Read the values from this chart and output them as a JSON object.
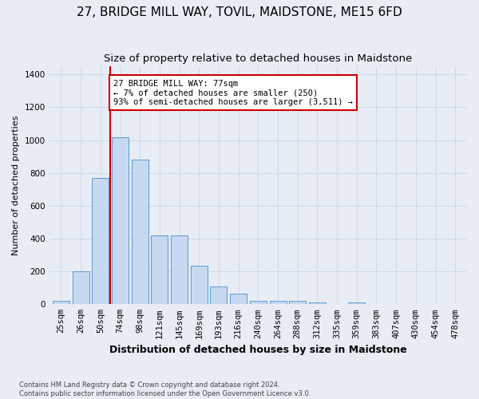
{
  "title": "27, BRIDGE MILL WAY, TOVIL, MAIDSTONE, ME15 6FD",
  "subtitle": "Size of property relative to detached houses in Maidstone",
  "xlabel": "Distribution of detached houses by size in Maidstone",
  "ylabel": "Number of detached properties",
  "categories": [
    "25sqm",
    "26sqm",
    "50sqm",
    "74sqm",
    "98sqm",
    "121sqm",
    "145sqm",
    "169sqm",
    "193sqm",
    "216sqm",
    "240sqm",
    "264sqm",
    "288sqm",
    "312sqm",
    "335sqm",
    "359sqm",
    "383sqm",
    "407sqm",
    "430sqm",
    "454sqm",
    "478sqm"
  ],
  "values": [
    20,
    200,
    770,
    1020,
    880,
    420,
    420,
    235,
    110,
    65,
    20,
    20,
    20,
    10,
    0,
    10,
    0,
    0,
    0,
    0,
    0
  ],
  "bar_color": "#c6d9f0",
  "bar_edge_color": "#5b9bd5",
  "grid_color": "#d0d8e8",
  "bg_color": "#e8edf5",
  "annotation_text": "27 BRIDGE MILL WAY: 77sqm\n← 7% of detached houses are smaller (250)\n93% of semi-detached houses are larger (3,511) →",
  "annotation_box_color": "#ffffff",
  "annotation_box_edge": "#cc0000",
  "vline_idx": 2.5,
  "vline_color": "#cc0000",
  "ylim": [
    0,
    1450
  ],
  "yticks": [
    0,
    200,
    400,
    600,
    800,
    1000,
    1200,
    1400
  ],
  "footnote": "Contains HM Land Registry data © Crown copyright and database right 2024.\nContains public sector information licensed under the Open Government Licence v3.0.",
  "title_fontsize": 11,
  "subtitle_fontsize": 9.5,
  "xlabel_fontsize": 9,
  "ylabel_fontsize": 8,
  "tick_fontsize": 7.5
}
